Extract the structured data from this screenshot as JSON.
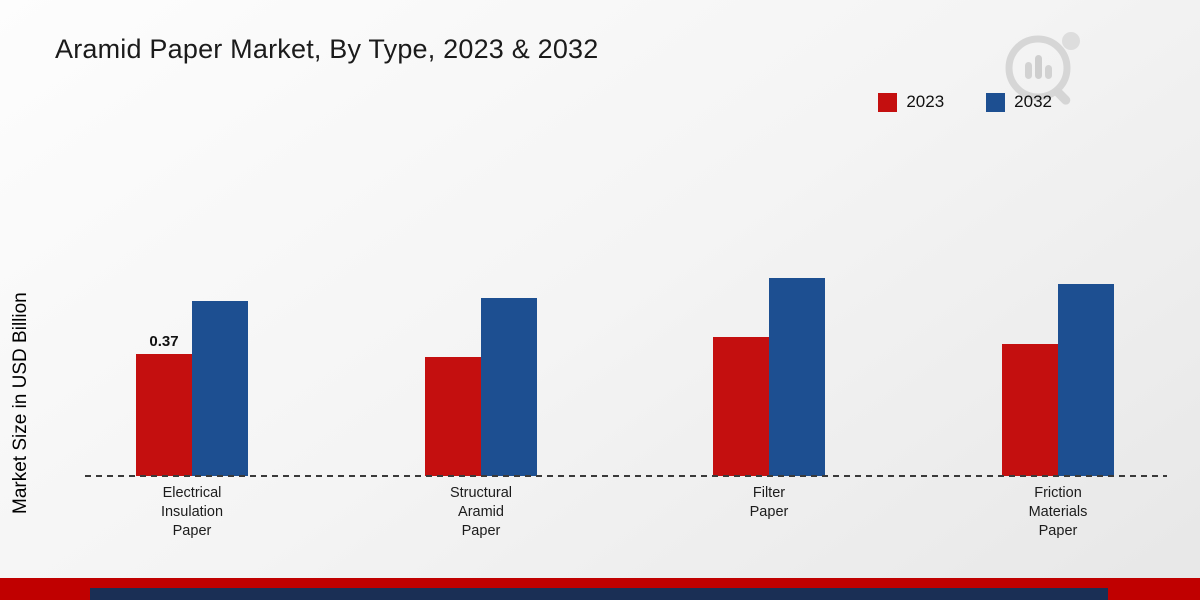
{
  "chart_data": {
    "type": "bar",
    "title": "Aramid Paper Market, By Type, 2023 & 2032",
    "xlabel": "",
    "ylabel": "Market Size in USD Billion",
    "categories": [
      "Electrical\nInsulation\nPaper",
      "Structural\nAramid\nPaper",
      "Filter\nPaper",
      "Friction\nMaterials\nPaper"
    ],
    "series": [
      {
        "name": "2023",
        "color": "#c40f0f",
        "values": [
          0.37,
          0.36,
          0.42,
          0.4
        ],
        "value_labels": [
          "0.37",
          "",
          "",
          ""
        ]
      },
      {
        "name": "2032",
        "color": "#1d4f91",
        "values": [
          0.53,
          0.54,
          0.6,
          0.58
        ],
        "value_labels": [
          "",
          "",
          "",
          ""
        ]
      }
    ],
    "ylim": [
      0,
      1.15
    ],
    "grid": false,
    "legend_position": "top-right",
    "baseline_style": "dashed"
  },
  "footer": {
    "red_band_color": "#c00000",
    "navy_band_color": "#1a2f55"
  }
}
